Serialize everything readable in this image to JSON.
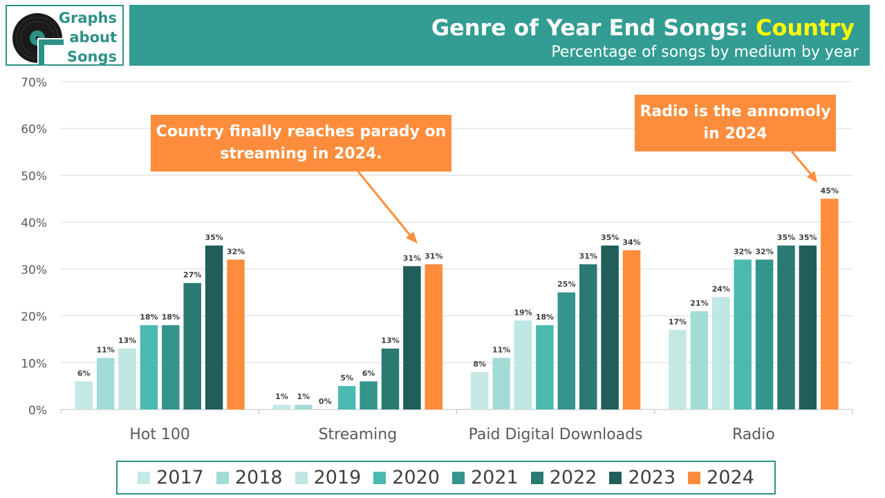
{
  "logo": {
    "lines": [
      "Graphs",
      "about",
      "Songs"
    ]
  },
  "header": {
    "title_prefix": "Genre of Year End Songs: ",
    "title_highlight": "Country",
    "subtitle": "Percentage of songs by medium by year"
  },
  "annotations": {
    "streaming_note": "Country finally reaches parady on streaming in 2024.",
    "radio_note": "Radio is the annomoly in 2024"
  },
  "colors": {
    "header_bg": "#339d93",
    "highlight": "#ffff00",
    "accent": "#fd8d3c",
    "grid": "#d9d9d9",
    "axis_text": "#595959"
  },
  "chart_data": {
    "type": "bar",
    "categories": [
      "Hot 100",
      "Streaming",
      "Paid Digital Downloads",
      "Radio"
    ],
    "ylim": [
      0,
      70
    ],
    "yticks": [
      0,
      10,
      20,
      30,
      40,
      50,
      60,
      70
    ],
    "ytick_labels": [
      "0%",
      "10%",
      "20%",
      "30%",
      "40%",
      "50%",
      "60%",
      "70%"
    ],
    "grid": true,
    "legend_position": "bottom",
    "series": [
      {
        "name": "2017",
        "color": "#c4e8e4",
        "values": [
          6,
          1,
          8,
          17
        ],
        "labels": [
          "6%",
          "1%",
          "8%",
          "17%"
        ]
      },
      {
        "name": "2018",
        "color": "#a3dcd6",
        "values": [
          11,
          1,
          11,
          21
        ],
        "labels": [
          "11%",
          "1%",
          "11%",
          "21%"
        ]
      },
      {
        "name": "2019",
        "color": "#bfe7e3",
        "values": [
          13,
          0,
          19,
          24
        ],
        "labels": [
          "13%",
          "0%",
          "19%",
          "24%"
        ]
      },
      {
        "name": "2020",
        "color": "#4bbab1",
        "values": [
          18,
          5,
          18,
          32
        ],
        "labels": [
          "18%",
          "5%",
          "18%",
          "32%"
        ]
      },
      {
        "name": "2021",
        "color": "#35958d",
        "values": [
          18,
          6,
          25,
          32
        ],
        "labels": [
          "18%",
          "6%",
          "25%",
          "32%"
        ]
      },
      {
        "name": "2022",
        "color": "#2a7a72",
        "values": [
          27,
          13,
          31,
          35
        ],
        "labels": [
          "27%",
          "13%",
          "31%",
          "35%"
        ]
      },
      {
        "name": "2023",
        "color": "#215e5a",
        "values": [
          35,
          30.6,
          35,
          35
        ],
        "labels": [
          "35%",
          "31%",
          "35%",
          "35%"
        ]
      },
      {
        "name": "2024",
        "color": "#fd8d3c",
        "values": [
          32,
          31,
          34,
          45
        ],
        "labels": [
          "32%",
          "31%",
          "34%",
          "45%"
        ]
      }
    ]
  }
}
